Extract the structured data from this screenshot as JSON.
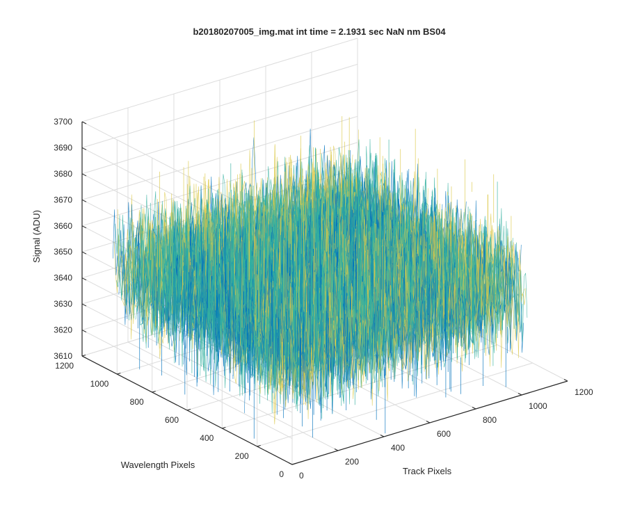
{
  "chart_data": {
    "type": "surface",
    "title": "b20180207005_img.mat int time = 2.1931 sec  NaN nm BS04",
    "xlabel": "Track Pixels",
    "ylabel": "Wavelength Pixels",
    "zlabel": "Signal (ADU)",
    "xlim": [
      0,
      1200
    ],
    "ylim": [
      0,
      1200
    ],
    "zlim": [
      3610,
      3700
    ],
    "x_ticks": [
      "0",
      "200",
      "400",
      "600",
      "800",
      "1000",
      "1200"
    ],
    "y_ticks": [
      "0",
      "200",
      "400",
      "600",
      "800",
      "1000",
      "1200"
    ],
    "z_ticks": [
      "3610",
      "3620",
      "3630",
      "3640",
      "3650",
      "3660",
      "3670",
      "3680",
      "3690",
      "3700"
    ],
    "data_extent": {
      "track_pixels": [
        0,
        1024
      ],
      "wavelength_pixels": [
        0,
        1024
      ]
    },
    "signal_mean": 3650,
    "signal_typical_range": [
      3625,
      3675
    ],
    "grid": true,
    "colormap": "parula",
    "colors": {
      "low": "#0072bd",
      "mid": "#35b0a0",
      "high": "#dcc94a"
    }
  }
}
